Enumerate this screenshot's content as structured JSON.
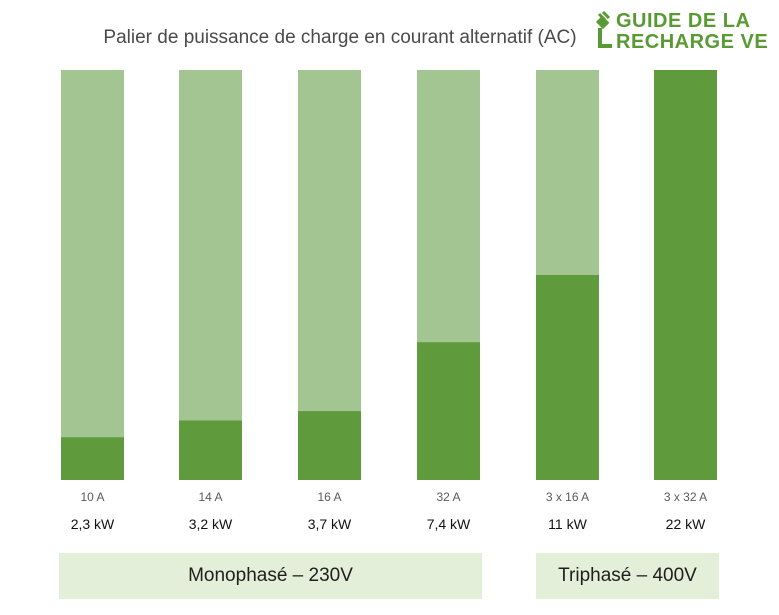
{
  "chart_data": {
    "type": "bar",
    "subtype": "stacked-100",
    "title": "Palier de puissance de charge en courant alternatif (AC)",
    "categories": [
      "10 A",
      "14 A",
      "16 A",
      "32 A",
      "3 x 16 A",
      "3 x 32 A"
    ],
    "value_labels": [
      "2,3 kW",
      "3,2 kW",
      "3,7 kW",
      "7,4 kW",
      "11 kW",
      "22 kW"
    ],
    "values_kw": [
      2.3,
      3.2,
      3.7,
      7.4,
      11,
      22
    ],
    "max_kw": 22,
    "series": [
      {
        "values": [
          2.3,
          3.2,
          3.7,
          7.4,
          11,
          22
        ],
        "color": "#5f9a3d"
      },
      {
        "values": [
          19.7,
          18.8,
          18.3,
          14.6,
          11,
          0
        ],
        "color": "#a3c592"
      }
    ],
    "groups": [
      {
        "label": "Monophasé – 230V",
        "categories": [
          "10 A",
          "14 A",
          "16 A",
          "32 A"
        ]
      },
      {
        "label": "Triphasé – 400V",
        "categories": [
          "3 x 16 A",
          "3 x 32 A"
        ]
      }
    ],
    "grid": false,
    "legend": "none"
  },
  "logo": {
    "line1": "GUIDE DE LA",
    "line2": "RECHARGE VE",
    "icon": "ev-plug-icon",
    "color": "#5a9a35"
  }
}
